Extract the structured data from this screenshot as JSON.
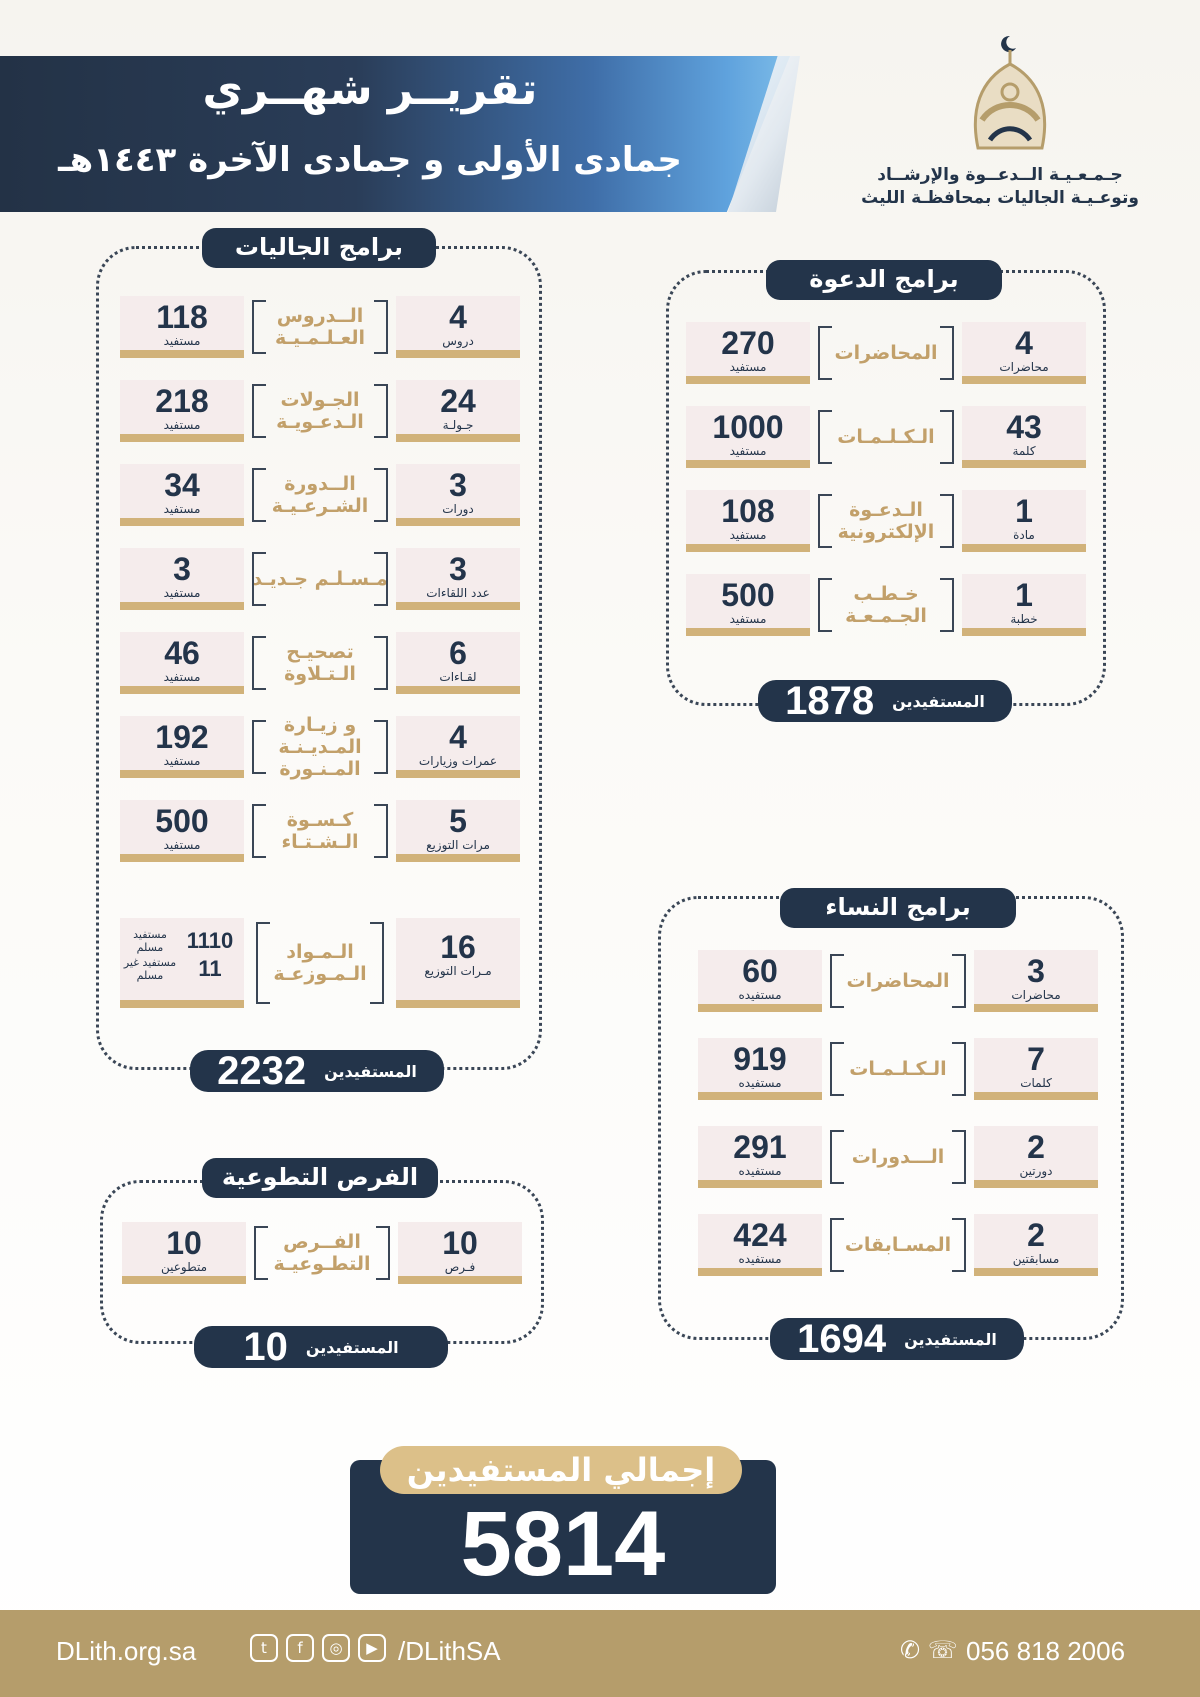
{
  "header": {
    "title": "تقريــر شهــري",
    "subtitle": "جمادى الأولى و جمادى الآخرة ١٤٤٣هـ",
    "org_line1": "جـمـعـيـة الــدعــوة والإرشــاد",
    "org_line2": "وتوعـيـة الجاليات بمحافظـة الليث"
  },
  "jaliyat": {
    "title": "برامج الجاليات",
    "total_label": "المستفيدين",
    "total": "2232",
    "rows": [
      {
        "count": "4",
        "count_unit": "دروس",
        "label": "الــدروس العـلـمـيـة",
        "beneficiaries": "118",
        "beneficiaries_unit": "مستفيد"
      },
      {
        "count": "24",
        "count_unit": "جـولـة",
        "label": "الجـولات الـدعـويـة",
        "beneficiaries": "218",
        "beneficiaries_unit": "مستفيد"
      },
      {
        "count": "3",
        "count_unit": "دورات",
        "label": "الــدورة الشـرعـيـة",
        "beneficiaries": "34",
        "beneficiaries_unit": "مستفيد"
      },
      {
        "count": "3",
        "count_unit": "عدد اللقاءات",
        "label": "مـسـلـم جـديـد",
        "beneficiaries": "3",
        "beneficiaries_unit": "مستفيد"
      },
      {
        "count": "6",
        "count_unit": "لقـاءات",
        "label": "تصحيـح الـتـلاوة",
        "beneficiaries": "46",
        "beneficiaries_unit": "مستفيد"
      },
      {
        "count": "4",
        "count_unit": "عمرات وزيارات",
        "label": "و زيـارة المـديـنـة المـنـورة",
        "beneficiaries": "192",
        "beneficiaries_unit": "مستفيد"
      },
      {
        "count": "5",
        "count_unit": "مرات التوزيع",
        "label": "كـسـوة الـشـتـاء",
        "beneficiaries": "500",
        "beneficiaries_unit": "مستفيد"
      }
    ],
    "last_row": {
      "count": "16",
      "count_unit": "مـرات التوزيع",
      "label": "الـمـواد الـمـوزعـة",
      "muslim": "1110",
      "muslim_unit": "مستفيد مسلم",
      "non_muslim": "11",
      "non_muslim_unit": "مستفيد غير مسلم"
    }
  },
  "dawah": {
    "title": "برامج الدعوة",
    "total_label": "المستفيدين",
    "total": "1878",
    "rows": [
      {
        "count": "4",
        "count_unit": "محاضرات",
        "label": "المحاضرات",
        "beneficiaries": "270",
        "beneficiaries_unit": "مستفيد"
      },
      {
        "count": "43",
        "count_unit": "كلمة",
        "label": "الـكـلـمـات",
        "beneficiaries": "1000",
        "beneficiaries_unit": "مستفيد"
      },
      {
        "count": "1",
        "count_unit": "مادة",
        "label": "الـدعـوة الإلكترونية",
        "beneficiaries": "108",
        "beneficiaries_unit": "مستفيد"
      },
      {
        "count": "1",
        "count_unit": "خطبة",
        "label": "خـطـب الجـمـعـة",
        "beneficiaries": "500",
        "beneficiaries_unit": "مستفيد"
      }
    ]
  },
  "women": {
    "title": "برامج النساء",
    "total_label": "المستفيدين",
    "total": "1694",
    "rows": [
      {
        "count": "3",
        "count_unit": "محاضرات",
        "label": "المحاضرات",
        "beneficiaries": "60",
        "beneficiaries_unit": "مستفيده"
      },
      {
        "count": "7",
        "count_unit": "كلمات",
        "label": "الـكـلـمـات",
        "beneficiaries": "919",
        "beneficiaries_unit": "مستفيده"
      },
      {
        "count": "2",
        "count_unit": "دورتين",
        "label": "الـــدورات",
        "beneficiaries": "291",
        "beneficiaries_unit": "مستفيده"
      },
      {
        "count": "2",
        "count_unit": "مسابقتين",
        "label": "المسـابقات",
        "beneficiaries": "424",
        "beneficiaries_unit": "مستفيده"
      }
    ]
  },
  "volunteer": {
    "title": "الفرص التطوعية",
    "total_label": "المستفيدين",
    "total": "10",
    "rows": [
      {
        "count": "10",
        "count_unit": "فـرص",
        "label": "الفــرص التطـوعيـة",
        "beneficiaries": "10",
        "beneficiaries_unit": "متطوعين"
      }
    ]
  },
  "grand_total": {
    "label": "إجمالي المستفيدين",
    "value": "5814"
  },
  "footer": {
    "website": "DLith.org.sa",
    "social_handle": "/DLithSA",
    "phone": "056 818 2006",
    "social_icons": [
      "twitter-icon",
      "facebook-icon",
      "instagram-icon",
      "youtube-icon"
    ]
  },
  "colors": {
    "navy": "#23344a",
    "gold": "#d1b27a",
    "cell_bg": "#f5ecec"
  }
}
